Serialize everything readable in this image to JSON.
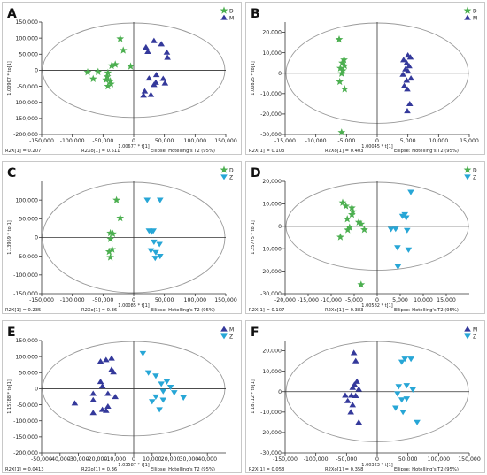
{
  "colors": {
    "D": "#4caf50",
    "M": "#34399b",
    "Z": "#27a6d6",
    "axis": "#333333",
    "ellipse": "#9a9a9a",
    "frame": "#c8c8c8"
  },
  "chart_data": [
    {
      "panel_label": "A",
      "type": "scatter",
      "xlim": [
        -150000,
        150000
      ],
      "ylim": [
        -200000,
        150000
      ],
      "xticks": [
        "-150,000",
        "-100,000",
        "-50,000",
        "0",
        "50,000",
        "100,000",
        "150,000"
      ],
      "xtick_values": [
        -150000,
        -100000,
        -50000,
        0,
        50000,
        100000,
        150000
      ],
      "yticks": [
        "150,000",
        "100,000",
        "50,000",
        "0",
        "-50,000",
        "-100,000",
        "-150,000",
        "-200,000"
      ],
      "ytick_values": [
        150000,
        100000,
        50000,
        0,
        -50000,
        -100000,
        -150000,
        -200000
      ],
      "xlabel": "1.00677 * t[1]",
      "ylabel": "1.00907 * to[1]",
      "footer": [
        "R2X[1] = 0.207",
        "R2Xo[1] = 0.511",
        "Ellipse: Hotelling's T2 (95%)"
      ],
      "legend": [
        "D",
        "M"
      ],
      "series": [
        {
          "name": "D",
          "symbol": "star",
          "points": [
            [
              -22000,
              98000
            ],
            [
              -17000,
              62000
            ],
            [
              -30000,
              18000
            ],
            [
              -36000,
              14000
            ],
            [
              -5000,
              12000
            ],
            [
              -58000,
              -5000
            ],
            [
              -42000,
              -8000
            ],
            [
              -43000,
              -20000
            ],
            [
              -45000,
              -30000
            ],
            [
              -38000,
              -34000
            ],
            [
              -37000,
              -43000
            ],
            [
              -42000,
              -50000
            ],
            [
              -75000,
              -6000
            ],
            [
              -66000,
              -27000
            ]
          ]
        },
        {
          "name": "M",
          "symbol": "triangle",
          "points": [
            [
              33000,
              92000
            ],
            [
              45000,
              82000
            ],
            [
              20000,
              72000
            ],
            [
              23000,
              58000
            ],
            [
              54000,
              56000
            ],
            [
              55000,
              40000
            ],
            [
              37000,
              -14000
            ],
            [
              25000,
              -25000
            ],
            [
              48000,
              -26000
            ],
            [
              36000,
              -38000
            ],
            [
              51000,
              -40000
            ],
            [
              33000,
              -45000
            ],
            [
              18000,
              -65000
            ],
            [
              16000,
              -78000
            ],
            [
              28000,
              -76000
            ]
          ]
        }
      ]
    },
    {
      "panel_label": "B",
      "type": "scatter",
      "xlim": [
        -15000,
        15000
      ],
      "ylim": [
        -30000,
        25000
      ],
      "xticks": [
        "-15,000",
        "-10,000",
        "-5,000",
        "0",
        "5,000",
        "10,000",
        "15,000"
      ],
      "xtick_values": [
        -15000,
        -10000,
        -5000,
        0,
        5000,
        10000,
        15000
      ],
      "yticks": [
        "20,000",
        "10,000",
        "0",
        "-10,000",
        "-20,000",
        "-30,000"
      ],
      "ytick_values": [
        20000,
        10000,
        0,
        -10000,
        -20000,
        -30000
      ],
      "xlabel": "1.00045 * t[1]",
      "ylabel": "1.00825 * to[1]",
      "footer": [
        "R2X[1] = 0.103",
        "R2Xo[1] = 0.403",
        "Ellipse: Hotelling's T2 (95%)"
      ],
      "legend": [
        "D",
        "M"
      ],
      "series": [
        {
          "name": "D",
          "symbol": "star",
          "points": [
            [
              -6200,
              16500
            ],
            [
              -5400,
              6500
            ],
            [
              -5700,
              5000
            ],
            [
              -5300,
              3600
            ],
            [
              -6000,
              2400
            ],
            [
              -5600,
              1200
            ],
            [
              -5800,
              -200
            ],
            [
              -6100,
              -4200
            ],
            [
              -5300,
              -7800
            ],
            [
              -5800,
              -29000
            ]
          ]
        },
        {
          "name": "M",
          "symbol": "triangle",
          "points": [
            [
              5000,
              8800
            ],
            [
              5400,
              7800
            ],
            [
              4300,
              6500
            ],
            [
              4800,
              5000
            ],
            [
              5200,
              3500
            ],
            [
              4600,
              2000
            ],
            [
              5000,
              1000
            ],
            [
              4200,
              -600
            ],
            [
              5500,
              -2500
            ],
            [
              4800,
              -3500
            ],
            [
              4400,
              -6200
            ],
            [
              4900,
              -7800
            ],
            [
              5300,
              -15000
            ],
            [
              4900,
              -18500
            ]
          ]
        }
      ]
    },
    {
      "panel_label": "C",
      "type": "scatter",
      "xlim": [
        -150000,
        150000
      ],
      "ylim": [
        -150000,
        150000
      ],
      "xticks": [
        "-150,000",
        "-100,000",
        "-50,000",
        "0",
        "50,000",
        "100,000",
        "150,000"
      ],
      "xtick_values": [
        -150000,
        -100000,
        -50000,
        0,
        50000,
        100000,
        150000
      ],
      "yticks": [
        "100,000",
        "50,000",
        "0",
        "-50,000",
        "-100,000",
        "-150,000"
      ],
      "ytick_values": [
        100000,
        50000,
        0,
        -50000,
        -100000,
        -150000
      ],
      "xlabel": "1.00085 * t[1]",
      "ylabel": "1.13959 * to[1]",
      "footer": [
        "R2X[1] = 0.235",
        "R2Xo[1] = 0.36",
        "Ellipse: Hotelling's T2 (95%)"
      ],
      "legend": [
        "D",
        "Z"
      ],
      "series": [
        {
          "name": "D",
          "symbol": "star",
          "points": [
            [
              -28000,
              100000
            ],
            [
              -22000,
              52000
            ],
            [
              -38000,
              12000
            ],
            [
              -34000,
              10000
            ],
            [
              -38000,
              -4000
            ],
            [
              -35000,
              -32000
            ],
            [
              -40000,
              -38000
            ],
            [
              -38000,
              -53000
            ]
          ]
        },
        {
          "name": "Z",
          "symbol": "triangle",
          "points": [
            [
              22000,
              100000
            ],
            [
              43000,
              100000
            ],
            [
              25000,
              18000
            ],
            [
              32000,
              18000
            ],
            [
              29000,
              15000
            ],
            [
              33000,
              -12000
            ],
            [
              42000,
              -18000
            ],
            [
              28000,
              -35000
            ],
            [
              36000,
              -40000
            ],
            [
              43000,
              -50000
            ],
            [
              35000,
              -55000
            ]
          ]
        }
      ]
    },
    {
      "panel_label": "D",
      "type": "scatter",
      "xlim": [
        -20000,
        20000
      ],
      "ylim": [
        -30000,
        20000
      ],
      "xticks": [
        "-20,000",
        "-15,000",
        "-10,000",
        "-5,000",
        "0",
        "5,000",
        "10,000",
        "15,000"
      ],
      "xtick_values": [
        -20000,
        -15000,
        -10000,
        -5000,
        0,
        5000,
        10000,
        15000
      ],
      "yticks": [
        "20,000",
        "10,000",
        "0",
        "-10,000",
        "-20,000",
        "-30,000"
      ],
      "ytick_values": [
        20000,
        10000,
        0,
        -10000,
        -20000,
        -30000
      ],
      "xlabel": "1.00582 * t[1]",
      "ylabel": "1.25775 * to[1]",
      "footer": [
        "R2X[1] = 0.107",
        "R2Xo[1] = 0.383",
        "Ellipse: Hotelling's T2 (95%)"
      ],
      "legend": [
        "D",
        "Z"
      ],
      "series": [
        {
          "name": "D",
          "symbol": "star",
          "points": [
            [
              -7500,
              10500
            ],
            [
              -6800,
              9000
            ],
            [
              -5500,
              8200
            ],
            [
              -5300,
              6500
            ],
            [
              -5500,
              5200
            ],
            [
              -6500,
              3200
            ],
            [
              -4000,
              1800
            ],
            [
              -3500,
              1000
            ],
            [
              -6000,
              -500
            ],
            [
              -6400,
              -1600
            ],
            [
              -2800,
              -1500
            ],
            [
              -8000,
              -4800
            ],
            [
              -3500,
              -26000
            ]
          ]
        },
        {
          "name": "Z",
          "symbol": "triangle",
          "points": [
            [
              7300,
              15200
            ],
            [
              6000,
              5200
            ],
            [
              5500,
              4500
            ],
            [
              6300,
              3800
            ],
            [
              4000,
              -1200
            ],
            [
              6500,
              -1800
            ],
            [
              4400,
              -9500
            ],
            [
              6800,
              -10500
            ],
            [
              3000,
              -1300
            ],
            [
              4500,
              -18000
            ]
          ]
        }
      ]
    },
    {
      "panel_label": "E",
      "type": "scatter",
      "xlim": [
        -50000,
        50000
      ],
      "ylim": [
        -200000,
        150000
      ],
      "xticks": [
        "-50,000",
        "-40,000",
        "-30,000",
        "-20,000",
        "-10,000",
        "0",
        "10,000",
        "20,000",
        "30,000",
        "40,000"
      ],
      "xtick_values": [
        -50000,
        -40000,
        -30000,
        -20000,
        -10000,
        0,
        10000,
        20000,
        30000,
        40000
      ],
      "yticks": [
        "150,000",
        "100,000",
        "50,000",
        "0",
        "-50,000",
        "-100,000",
        "-150,000",
        "-200,000"
      ],
      "ytick_values": [
        150000,
        100000,
        50000,
        0,
        -50000,
        -100000,
        -150000,
        -200000
      ],
      "xlabel": "1.03587 * t[1]",
      "ylabel": "1.15788 * to[1]",
      "footer": [
        "R2X[1] = 0.0413",
        "R2Xo[1] = 0.36",
        "Ellipse: Hotelling's T2 (95%)"
      ],
      "legend": [
        "M",
        "Z"
      ],
      "series": [
        {
          "name": "M",
          "symbol": "triangle",
          "points": [
            [
              -15000,
              90000
            ],
            [
              -12000,
              95000
            ],
            [
              -18000,
              85000
            ],
            [
              -12000,
              60000
            ],
            [
              -11000,
              52000
            ],
            [
              -18000,
              22000
            ],
            [
              -17000,
              8000
            ],
            [
              -22000,
              -15000
            ],
            [
              -14000,
              -15000
            ],
            [
              -10000,
              -25000
            ],
            [
              -22000,
              -35000
            ],
            [
              -32000,
              -45000
            ],
            [
              -14000,
              -55000
            ],
            [
              -17000,
              -65000
            ],
            [
              -15000,
              -68000
            ],
            [
              -22000,
              -75000
            ]
          ]
        },
        {
          "name": "Z",
          "symbol": "triangle",
          "points": [
            [
              5000,
              110000
            ],
            [
              8000,
              50000
            ],
            [
              12000,
              40000
            ],
            [
              18000,
              22000
            ],
            [
              15000,
              15000
            ],
            [
              20000,
              5000
            ],
            [
              16000,
              -8000
            ],
            [
              22000,
              -12000
            ],
            [
              12000,
              -25000
            ],
            [
              27000,
              -28000
            ],
            [
              16000,
              -35000
            ],
            [
              10000,
              -40000
            ],
            [
              14000,
              -65000
            ]
          ]
        }
      ]
    },
    {
      "panel_label": "F",
      "type": "scatter",
      "xlim": [
        -150000,
        150000
      ],
      "ylim": [
        -30000,
        25000
      ],
      "xticks": [
        "-150,000",
        "-100,000",
        "-50,000",
        "0",
        "50,000",
        "100,000",
        "150,000"
      ],
      "xtick_values": [
        -150000,
        -100000,
        -50000,
        0,
        50000,
        100000,
        150000
      ],
      "yticks": [
        "20,000",
        "10,000",
        "0",
        "-10,000",
        "-20,000",
        "-30,000"
      ],
      "ytick_values": [
        20000,
        10000,
        0,
        -10000,
        -20000,
        -30000
      ],
      "xlabel": "1.00323 * t[1]",
      "ylabel": "1.18712 * to[1]",
      "footer": [
        "R2X[1] = 0.058",
        "R2Xo[1] = 0.358",
        "Ellipse: Hotelling's T2 (95%)"
      ],
      "legend": [
        "M",
        "Z"
      ],
      "series": [
        {
          "name": "M",
          "symbol": "triangle",
          "points": [
            [
              -38000,
              19000
            ],
            [
              -35000,
              15000
            ],
            [
              -33000,
              5000
            ],
            [
              -37000,
              3500
            ],
            [
              -40000,
              2000
            ],
            [
              -30000,
              1200
            ],
            [
              -52000,
              -1800
            ],
            [
              -42000,
              -1800
            ],
            [
              -35000,
              -2000
            ],
            [
              -48000,
              -4500
            ],
            [
              -40000,
              -6500
            ],
            [
              -43000,
              -10000
            ],
            [
              -30000,
              -15000
            ]
          ]
        },
        {
          "name": "Z",
          "symbol": "triangle",
          "points": [
            [
              45000,
              16000
            ],
            [
              55000,
              16000
            ],
            [
              40000,
              14500
            ],
            [
              48000,
              3000
            ],
            [
              35000,
              2500
            ],
            [
              58000,
              1000
            ],
            [
              33000,
              -1000
            ],
            [
              40000,
              -4000
            ],
            [
              48000,
              -3500
            ],
            [
              30000,
              -8000
            ],
            [
              42000,
              -10000
            ],
            [
              65000,
              -15000
            ]
          ]
        }
      ]
    }
  ]
}
